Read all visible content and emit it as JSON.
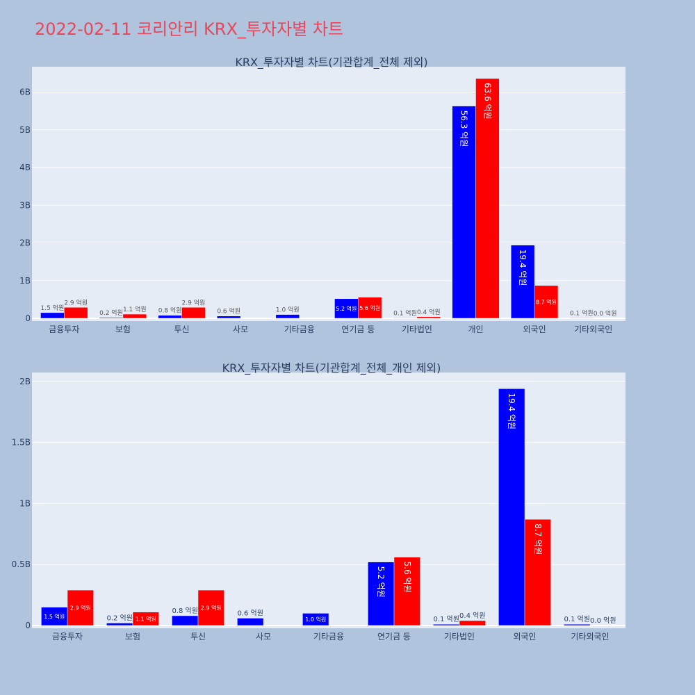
{
  "page": {
    "title": "2022-02-11 코리안리 KRX_투자자별 차트",
    "title_color": "#e8465a",
    "background": "#b0c4de",
    "plot_background": "#e5ecf6"
  },
  "chart_data": [
    {
      "type": "bar",
      "title": "KRX_투자자별 차트(기관합계_전체 제외)",
      "categories": [
        "금융투자",
        "보험",
        "투신",
        "사모",
        "기타금융",
        "연기금 등",
        "기타법인",
        "개인",
        "외국인",
        "기타외국인"
      ],
      "ylim": [
        0,
        6.6
      ],
      "yticks": [
        {
          "value": 0,
          "label": "0"
        },
        {
          "value": 1,
          "label": "1B"
        },
        {
          "value": 2,
          "label": "2B"
        },
        {
          "value": 3,
          "label": "3B"
        },
        {
          "value": 4,
          "label": "4B"
        },
        {
          "value": 5,
          "label": "5B"
        },
        {
          "value": 6,
          "label": "6B"
        }
      ],
      "grid": true,
      "series": [
        {
          "color": "#0000ff",
          "values": [
            0.15,
            0.02,
            0.08,
            0.06,
            0.1,
            0.52,
            0.01,
            5.63,
            1.94,
            0.01
          ],
          "labels": [
            "1.5 억원",
            "0.2 억원",
            "0.8 억원",
            "0.6 억원",
            "1.0 억원",
            "5.2 억원",
            "0.1 억원",
            "56.3 억원",
            "19.4 억원",
            "0.1 억원"
          ]
        },
        {
          "color": "#ff0000",
          "values": [
            0.29,
            0.11,
            0.29,
            0,
            0,
            0.56,
            0.04,
            6.36,
            0.87,
            0.0
          ],
          "labels": [
            "2.9 억원",
            "1.1 억원",
            "2.9 억원",
            "",
            "",
            "5.6 억원",
            "0.4 억원",
            "63.6 억원",
            "8.7 억원",
            "0.0 억원"
          ]
        }
      ]
    },
    {
      "type": "bar",
      "title": "KRX_투자자별 차트(기관합계_전체_개인 제외)",
      "categories": [
        "금융투자",
        "보험",
        "투신",
        "사모",
        "기타금융",
        "연기금 등",
        "기타법인",
        "외국인",
        "기타외국인"
      ],
      "ylim": [
        0,
        2.05
      ],
      "yticks": [
        {
          "value": 0,
          "label": "0"
        },
        {
          "value": 0.5,
          "label": "0.5B"
        },
        {
          "value": 1,
          "label": "1B"
        },
        {
          "value": 1.5,
          "label": "1.5B"
        },
        {
          "value": 2,
          "label": "2B"
        }
      ],
      "grid": true,
      "series": [
        {
          "color": "#0000ff",
          "values": [
            0.15,
            0.02,
            0.08,
            0.06,
            0.1,
            0.52,
            0.01,
            1.94,
            0.01
          ],
          "labels": [
            "1.5 억원",
            "0.2 억원",
            "0.8 억원",
            "0.6 억원",
            "1.0 억원",
            "5.2 억원",
            "0.1 억원",
            "19.4 억원",
            "0.1 억원"
          ]
        },
        {
          "color": "#ff0000",
          "values": [
            0.29,
            0.11,
            0.29,
            0,
            0,
            0.56,
            0.04,
            0.87,
            0.0
          ],
          "labels": [
            "2.9 억원",
            "1.1 억원",
            "2.9 억원",
            "",
            "",
            "5.6 억원",
            "0.4 억원",
            "8.7 억원",
            "0.0 억원"
          ]
        }
      ]
    }
  ]
}
